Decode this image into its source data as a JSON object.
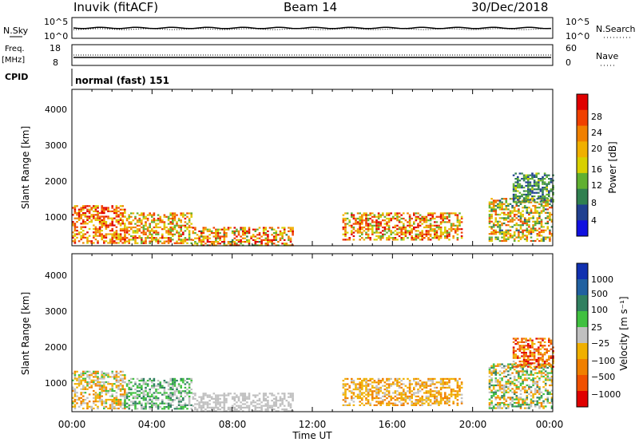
{
  "header": {
    "station": "Inuvik (fitACF)",
    "beam": "Beam 14",
    "date": "30/Dec/2018"
  },
  "top_panels": {
    "nsky_label": "N.Sky",
    "nsky_ticks": [
      "10^5",
      "10^0"
    ],
    "nsearch_label": "N.Search",
    "nsearch_ticks": [
      "10^5",
      "10^0"
    ],
    "freq_label": "Freq.",
    "freq_unit": "[MHz]",
    "freq_ticks": [
      "18",
      "8"
    ],
    "nave_label": "Nave",
    "nave_ticks": [
      "60",
      "0"
    ],
    "cpid_label": "CPID",
    "cpid_value": "normal (fast) 151"
  },
  "x_axis": {
    "label": "Time UT",
    "ticks": [
      "00:00",
      "04:00",
      "08:00",
      "12:00",
      "16:00",
      "20:00",
      "00:00"
    ]
  },
  "power_colorbar": {
    "label": "Power [dB]",
    "ticks": [
      "28",
      "24",
      "20",
      "16",
      "12",
      "8",
      "4"
    ],
    "colors": [
      "#e00000",
      "#f04000",
      "#f08000",
      "#f0b000",
      "#d8d000",
      "#60b030",
      "#308050",
      "#204090",
      "#1010e0"
    ]
  },
  "velocity_colorbar": {
    "label": "Velocity [m s⁻¹]",
    "ticks": [
      "1000",
      "500",
      "100",
      "25",
      "−25",
      "−100",
      "−500",
      "−1000"
    ],
    "colors": [
      "#1030b0",
      "#2060a0",
      "#308060",
      "#40c040",
      "#c0c0c0",
      "#f0b000",
      "#f08000",
      "#f05000",
      "#e00000"
    ]
  },
  "chart_data": [
    {
      "type": "heatmap",
      "title": "Power",
      "xlabel": "Time UT",
      "ylabel": "Slant Range [km]",
      "y_ticks": [
        "1000",
        "2000",
        "3000",
        "4000"
      ],
      "xlim": [
        0,
        24
      ],
      "ylim": [
        180,
        4500
      ],
      "zlabel": "Power [dB]",
      "zlim": [
        0,
        30
      ],
      "clusters": [
        {
          "t": [
            0.0,
            2.6
          ],
          "r": [
            250,
            1300
          ],
          "z": [
            14,
            30
          ]
        },
        {
          "t": [
            2.6,
            6.0
          ],
          "r": [
            250,
            1100
          ],
          "z": [
            10,
            28
          ]
        },
        {
          "t": [
            6.0,
            11.0
          ],
          "r": [
            200,
            700
          ],
          "z": [
            8,
            30
          ]
        },
        {
          "t": [
            13.5,
            19.5
          ],
          "r": [
            350,
            1100
          ],
          "z": [
            10,
            30
          ]
        },
        {
          "t": [
            20.8,
            24.0
          ],
          "r": [
            300,
            1500
          ],
          "z": [
            6,
            26
          ]
        },
        {
          "t": [
            22.0,
            24.0
          ],
          "r": [
            1400,
            2200
          ],
          "z": [
            4,
            14
          ]
        }
      ]
    },
    {
      "type": "heatmap",
      "title": "Velocity",
      "xlabel": "Time UT",
      "ylabel": "Slant Range [km]",
      "y_ticks": [
        "1000",
        "2000",
        "3000",
        "4000"
      ],
      "xlim": [
        0,
        24
      ],
      "ylim": [
        180,
        4500
      ],
      "zlabel": "Velocity [m s⁻¹]",
      "zlim": [
        -1000,
        1000
      ],
      "clusters": [
        {
          "t": [
            0.0,
            2.6
          ],
          "r": [
            250,
            1300
          ],
          "z": [
            -500,
            200
          ]
        },
        {
          "t": [
            2.6,
            6.0
          ],
          "r": [
            250,
            1100
          ],
          "z": [
            -100,
            500
          ]
        },
        {
          "t": [
            6.0,
            11.0
          ],
          "r": [
            200,
            700
          ],
          "z": [
            -100,
            100
          ]
        },
        {
          "t": [
            13.5,
            19.5
          ],
          "r": [
            350,
            1100
          ],
          "z": [
            -500,
            -25
          ]
        },
        {
          "t": [
            20.8,
            24.0
          ],
          "r": [
            300,
            1500
          ],
          "z": [
            -500,
            500
          ]
        },
        {
          "t": [
            22.0,
            24.0
          ],
          "r": [
            1400,
            2200
          ],
          "z": [
            -1000,
            -100
          ]
        }
      ]
    }
  ]
}
